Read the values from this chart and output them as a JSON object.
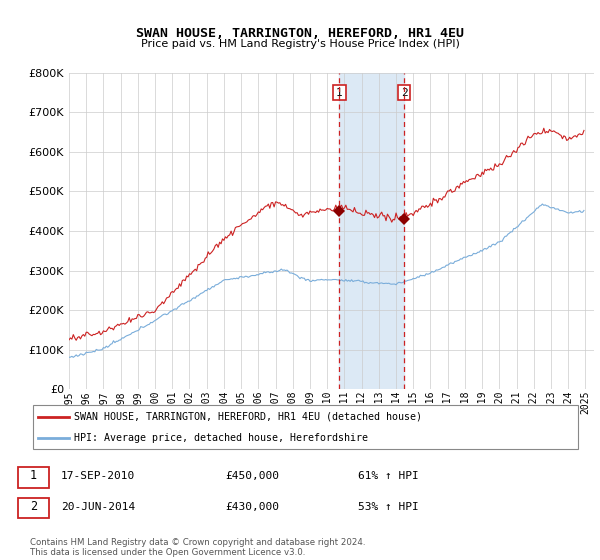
{
  "title": "SWAN HOUSE, TARRINGTON, HEREFORD, HR1 4EU",
  "subtitle": "Price paid vs. HM Land Registry's House Price Index (HPI)",
  "ylim": [
    0,
    800000
  ],
  "xlim_start": 1995.0,
  "xlim_end": 2025.5,
  "sale1_x": 2010.71,
  "sale1_y": 450000,
  "sale2_x": 2014.47,
  "sale2_y": 430000,
  "legend_line1": "SWAN HOUSE, TARRINGTON, HEREFORD, HR1 4EU (detached house)",
  "legend_line2": "HPI: Average price, detached house, Herefordshire",
  "footer": "Contains HM Land Registry data © Crown copyright and database right 2024.\nThis data is licensed under the Open Government Licence v3.0.",
  "highlight_color": "#dce9f5",
  "sale_line_color": "#cc2222",
  "hpi_line_color": "#7aadda",
  "background_color": "#ffffff",
  "grid_color": "#cccccc"
}
